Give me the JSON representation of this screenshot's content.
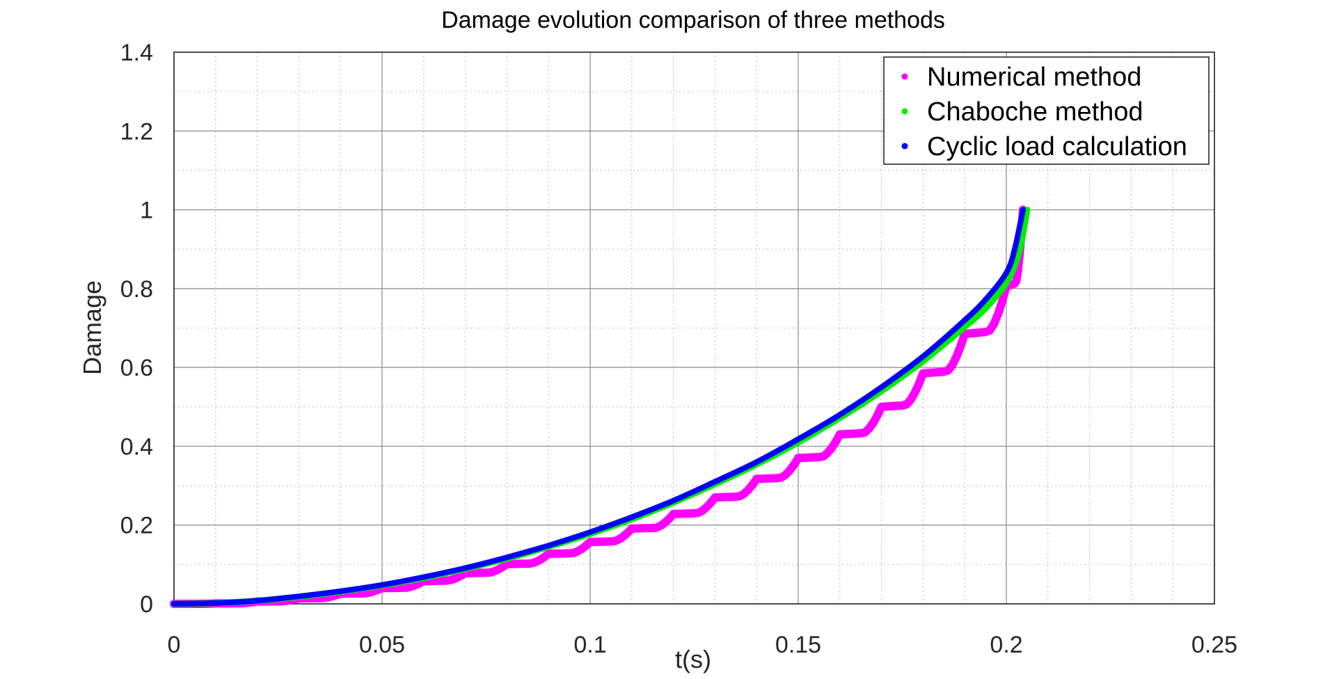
{
  "chart_data": {
    "type": "line",
    "title": "Damage evolution comparison of three methods",
    "xlabel": "t(s)",
    "ylabel": "Damage",
    "xlim": [
      0,
      0.25
    ],
    "ylim": [
      0,
      1.4
    ],
    "x_ticks": [
      0,
      0.05,
      0.1,
      0.15,
      0.2,
      0.25
    ],
    "x_tick_labels": [
      "0",
      "0.05",
      "0.1",
      "0.15",
      "0.2",
      "0.25"
    ],
    "y_ticks": [
      0,
      0.2,
      0.4,
      0.6,
      0.8,
      1,
      1.2,
      1.4
    ],
    "y_tick_labels": [
      "0",
      "0.2",
      "0.4",
      "0.6",
      "0.8",
      "1",
      "1.2",
      "1.4"
    ],
    "grid": true,
    "minor_grid": true,
    "legend_position": "top-right",
    "series": [
      {
        "name": "Numerical method",
        "color": "#ff00ff",
        "style": "stepped",
        "x": [
          0,
          0.01,
          0.02,
          0.03,
          0.04,
          0.05,
          0.06,
          0.07,
          0.08,
          0.09,
          0.1,
          0.11,
          0.12,
          0.13,
          0.14,
          0.15,
          0.16,
          0.17,
          0.18,
          0.19,
          0.2,
          0.204
        ],
        "y": [
          0,
          0.001,
          0.006,
          0.014,
          0.026,
          0.04,
          0.058,
          0.078,
          0.101,
          0.127,
          0.157,
          0.191,
          0.228,
          0.27,
          0.317,
          0.37,
          0.43,
          0.5,
          0.585,
          0.685,
          0.805,
          1.0
        ]
      },
      {
        "name": "Chaboche method",
        "color": "#00ee00",
        "style": "smooth",
        "x": [
          0,
          0.01,
          0.02,
          0.03,
          0.04,
          0.05,
          0.06,
          0.07,
          0.08,
          0.09,
          0.1,
          0.11,
          0.12,
          0.13,
          0.14,
          0.15,
          0.16,
          0.17,
          0.18,
          0.19,
          0.195,
          0.2,
          0.203,
          0.205
        ],
        "y": [
          0,
          0.002,
          0.008,
          0.018,
          0.031,
          0.047,
          0.066,
          0.089,
          0.115,
          0.145,
          0.178,
          0.215,
          0.257,
          0.304,
          0.354,
          0.41,
          0.472,
          0.54,
          0.616,
          0.703,
          0.75,
          0.815,
          0.89,
          1.0
        ]
      },
      {
        "name": "Cyclic load calculation",
        "color": "#0000ff",
        "style": "smooth",
        "x": [
          0,
          0.01,
          0.02,
          0.03,
          0.04,
          0.05,
          0.06,
          0.07,
          0.08,
          0.09,
          0.1,
          0.11,
          0.12,
          0.13,
          0.14,
          0.15,
          0.16,
          0.17,
          0.18,
          0.19,
          0.195,
          0.2,
          0.202,
          0.204
        ],
        "y": [
          0,
          0.002,
          0.008,
          0.019,
          0.032,
          0.048,
          0.068,
          0.091,
          0.118,
          0.148,
          0.182,
          0.22,
          0.262,
          0.31,
          0.36,
          0.418,
          0.48,
          0.55,
          0.628,
          0.72,
          0.772,
          0.84,
          0.9,
          1.0
        ]
      }
    ]
  }
}
